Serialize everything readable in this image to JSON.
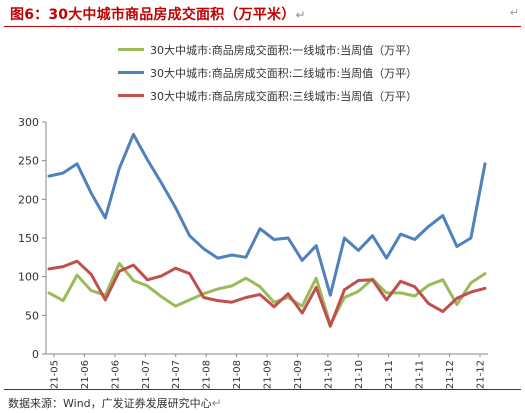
{
  "header": {
    "title": "图6：30大中城市商品房成交面积（万平米）",
    "return_mark": "↵"
  },
  "footer": {
    "source": "数据来源：Wind，广发证券发展研究中心",
    "return_mark": "↵"
  },
  "chart_data": {
    "type": "line",
    "title": "",
    "xlabel": "",
    "ylabel": "",
    "ylim": [
      0,
      300
    ],
    "yticks": [
      0,
      50,
      100,
      150,
      200,
      250,
      300
    ],
    "grid": false,
    "legend": "top",
    "x_tick_labels": [
      "21-05",
      "21-06",
      "21-06",
      "21-07",
      "21-07",
      "21-08",
      "21-08",
      "21-09",
      "21-09",
      "21-10",
      "21-10",
      "21-11",
      "21-11",
      "21-12",
      "21-12"
    ],
    "series": [
      {
        "name": "30大中城市:商品房成交面积:一线城市:当周值（万平）",
        "color": "#9bbb59",
        "values": [
          79,
          69,
          102,
          82,
          76,
          117,
          95,
          88,
          74,
          62,
          70,
          78,
          84,
          88,
          98,
          87,
          67,
          73,
          62,
          98,
          38,
          73,
          81,
          97,
          79,
          79,
          75,
          89,
          96,
          64,
          92,
          104
        ]
      },
      {
        "name": "30大中城市:商品房成交面积:二线城市:当周值（万平）",
        "color": "#4f81bd",
        "values": [
          230,
          234,
          246,
          208,
          176,
          240,
          284,
          251,
          221,
          189,
          153,
          136,
          124,
          128,
          125,
          162,
          148,
          150,
          121,
          140,
          76,
          150,
          134,
          153,
          124,
          155,
          148,
          165,
          179,
          139,
          150,
          246
        ]
      },
      {
        "name": "30大中城市:商品房成交面积:三线城市:当周值（万平）",
        "color": "#c0504d",
        "values": [
          110,
          113,
          120,
          103,
          70,
          107,
          115,
          96,
          101,
          111,
          104,
          73,
          69,
          67,
          73,
          77,
          61,
          78,
          53,
          86,
          36,
          83,
          95,
          96,
          70,
          94,
          87,
          65,
          55,
          72,
          80,
          85
        ]
      }
    ]
  }
}
